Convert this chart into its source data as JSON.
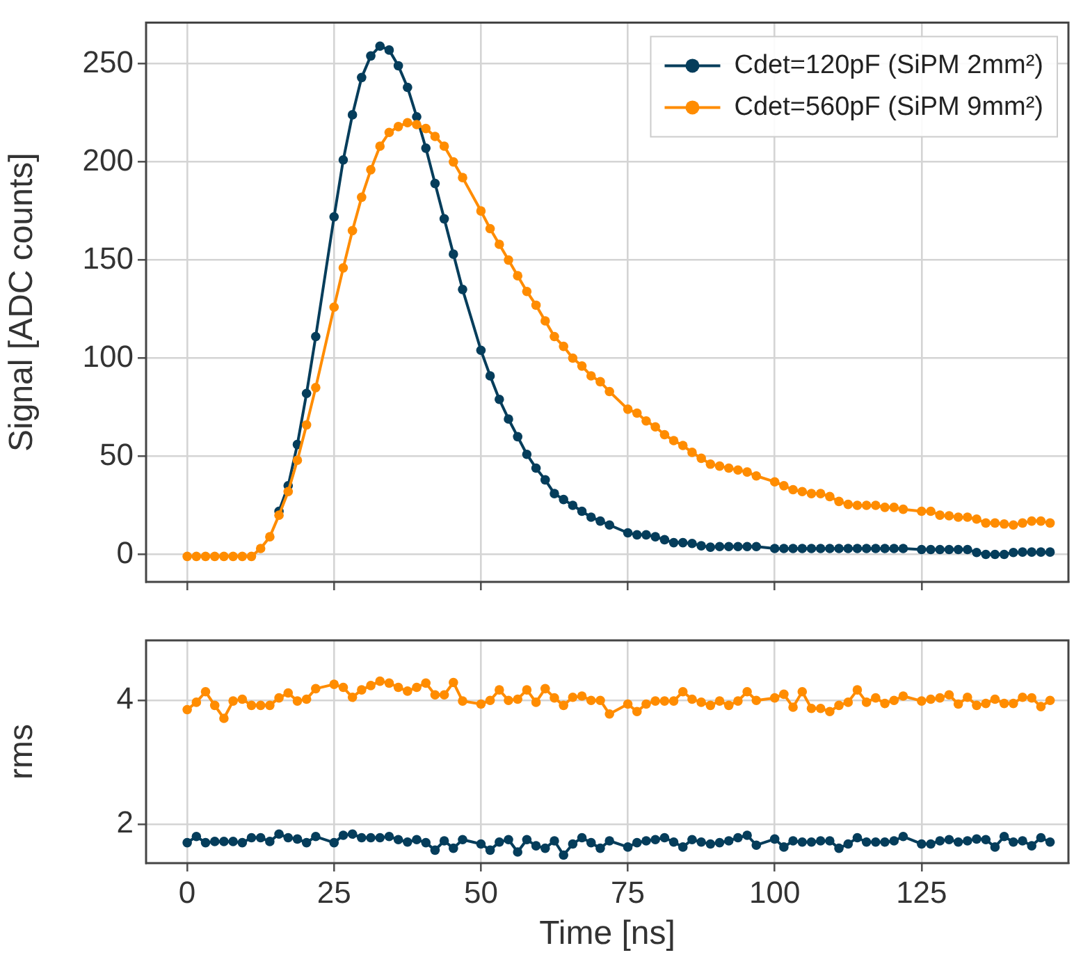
{
  "chart_data": [
    {
      "type": "line",
      "ylabel": "Signal [ADC counts]",
      "x": [
        0,
        1.5625,
        3.125,
        4.6875,
        6.25,
        7.8125,
        9.375,
        10.9375,
        12.5,
        14.0625,
        15.625,
        17.1875,
        18.75,
        20.3125,
        21.875,
        23.4375,
        25,
        26.5625,
        28.125,
        29.6875,
        31.25,
        32.8125,
        34.375,
        35.9375,
        37.5,
        39.0625,
        40.625,
        42.1875,
        43.75,
        45.3125,
        46.875,
        48.4375,
        50,
        51.5625,
        53.125,
        54.6875,
        56.25,
        57.8125,
        59.375,
        60.9375,
        62.5,
        64.0625,
        65.625,
        67.1875,
        68.75,
        70.3125,
        71.875,
        73.4375,
        75,
        76.5625,
        78.125,
        79.6875,
        81.25,
        82.8125,
        84.375,
        85.9375,
        87.5,
        89.0625,
        90.625,
        92.1875,
        93.75,
        95.3125,
        96.875,
        98.4375,
        100,
        101.5625,
        103.125,
        104.6875,
        106.25,
        107.8125,
        109.375,
        110.9375,
        112.5,
        114.0625,
        115.625,
        117.1875,
        118.75,
        120.3125,
        121.875,
        123.4375,
        125,
        126.5625,
        128.125,
        129.6875,
        131.25,
        132.8125,
        134.375,
        135.9375,
        137.5,
        139.0625,
        140.625,
        142.1875,
        143.75,
        145.3125,
        146.875
      ],
      "series": [
        {
          "name": "Cdet=120pF (SiPM 2mm²)",
          "color": "#053d5b",
          "values": [
            null,
            null,
            null,
            null,
            null,
            null,
            null,
            null,
            null,
            null,
            22,
            35,
            56,
            82,
            111,
            null,
            172,
            201,
            224,
            243,
            254,
            259,
            257,
            249,
            238,
            223,
            207,
            189,
            171,
            153,
            135,
            null,
            104,
            91,
            79,
            69,
            60,
            51,
            44,
            38,
            31,
            28,
            25,
            22,
            19,
            17,
            15,
            null,
            11,
            10,
            10,
            9,
            7.5,
            6,
            6,
            5.6,
            4.4,
            3.7,
            4,
            4,
            4,
            4,
            4,
            null,
            3,
            3,
            3,
            3,
            3,
            3,
            3,
            3,
            3,
            3,
            3,
            3,
            3,
            3,
            3,
            null,
            2.5,
            2.5,
            2.5,
            2.5,
            2.5,
            2.5,
            1,
            0,
            0,
            0,
            1,
            1.2,
            1.2,
            1.2,
            1.2
          ]
        },
        {
          "name": "Cdet=560pF (SiPM 9mm²)",
          "color": "#ff8c00",
          "values": [
            -1,
            -1,
            -1,
            -1,
            -1,
            -1,
            -1,
            -1,
            3,
            9,
            20,
            32,
            48,
            66,
            85,
            null,
            126,
            146,
            165,
            182,
            196,
            208,
            215,
            218,
            220,
            219,
            217,
            213,
            208,
            200,
            192,
            null,
            175,
            166,
            158,
            150,
            142,
            134,
            127,
            119,
            111,
            106,
            100,
            96,
            91,
            88,
            83,
            null,
            74,
            72,
            68,
            65,
            61,
            58,
            55.5,
            52,
            49,
            46,
            45,
            44,
            43,
            42,
            40,
            null,
            37,
            35,
            33,
            32,
            31,
            31,
            29.5,
            27,
            25.5,
            25,
            25,
            25,
            24,
            24,
            23,
            null,
            22,
            22,
            20,
            19.7,
            19,
            19,
            18,
            16,
            16,
            15.5,
            15,
            16,
            17,
            17,
            16
          ]
        }
      ],
      "xlim": [
        -7,
        150
      ],
      "xticks": [
        0,
        25,
        50,
        75,
        100,
        125
      ],
      "ylim": [
        -14,
        271
      ],
      "yticks": [
        0,
        50,
        100,
        150,
        200,
        250
      ],
      "tick_labels": "y",
      "grid": true,
      "legend": "top right",
      "marker": "circle",
      "line_style": "solid"
    },
    {
      "type": "line",
      "xlabel": "Time [ns]",
      "ylabel": "rms",
      "x": [
        0,
        1.5625,
        3.125,
        4.6875,
        6.25,
        7.8125,
        9.375,
        10.9375,
        12.5,
        14.0625,
        15.625,
        17.1875,
        18.75,
        20.3125,
        21.875,
        23.4375,
        25,
        26.5625,
        28.125,
        29.6875,
        31.25,
        32.8125,
        34.375,
        35.9375,
        37.5,
        39.0625,
        40.625,
        42.1875,
        43.75,
        45.3125,
        46.875,
        48.4375,
        50,
        51.5625,
        53.125,
        54.6875,
        56.25,
        57.8125,
        59.375,
        60.9375,
        62.5,
        64.0625,
        65.625,
        67.1875,
        68.75,
        70.3125,
        71.875,
        73.4375,
        75,
        76.5625,
        78.125,
        79.6875,
        81.25,
        82.8125,
        84.375,
        85.9375,
        87.5,
        89.0625,
        90.625,
        92.1875,
        93.75,
        95.3125,
        96.875,
        98.4375,
        100,
        101.5625,
        103.125,
        104.6875,
        106.25,
        107.8125,
        109.375,
        110.9375,
        112.5,
        114.0625,
        115.625,
        117.1875,
        118.75,
        120.3125,
        121.875,
        123.4375,
        125,
        126.5625,
        128.125,
        129.6875,
        131.25,
        132.8125,
        134.375,
        135.9375,
        137.5,
        139.0625,
        140.625,
        142.1875,
        143.75,
        145.3125,
        146.875
      ],
      "series": [
        {
          "color": "#053d5b",
          "values": [
            1.7,
            1.8,
            1.7,
            1.72,
            1.72,
            1.72,
            1.7,
            1.78,
            1.78,
            1.72,
            1.84,
            1.78,
            1.76,
            1.7,
            1.8,
            null,
            1.7,
            1.82,
            1.84,
            1.78,
            1.78,
            1.78,
            1.8,
            1.75,
            1.71,
            1.75,
            1.7,
            1.58,
            1.73,
            1.61,
            1.75,
            null,
            1.68,
            1.58,
            1.71,
            1.75,
            1.55,
            1.75,
            1.65,
            1.61,
            1.73,
            1.5,
            1.68,
            1.78,
            1.7,
            1.61,
            1.73,
            null,
            1.63,
            1.7,
            1.73,
            1.75,
            1.78,
            1.71,
            1.63,
            1.75,
            1.71,
            1.68,
            1.7,
            1.73,
            1.78,
            1.82,
            1.66,
            null,
            1.76,
            1.63,
            1.73,
            1.71,
            1.71,
            1.73,
            1.73,
            1.61,
            1.68,
            1.78,
            1.71,
            1.71,
            1.71,
            1.73,
            1.8,
            null,
            1.68,
            1.68,
            1.73,
            1.75,
            1.71,
            1.73,
            1.76,
            1.75,
            1.63,
            1.8,
            1.71,
            1.73,
            1.65,
            1.78,
            1.71
          ]
        },
        {
          "color": "#ff8c00",
          "values": [
            3.85,
            3.97,
            4.14,
            3.92,
            3.71,
            3.99,
            4.02,
            3.92,
            3.92,
            3.92,
            4.04,
            4.12,
            3.99,
            4.02,
            4.19,
            null,
            4.26,
            4.21,
            4.05,
            4.17,
            4.24,
            4.31,
            4.28,
            4.21,
            4.15,
            4.21,
            4.28,
            4.09,
            4.09,
            4.29,
            3.99,
            null,
            3.94,
            4.0,
            4.17,
            4.0,
            4.02,
            4.17,
            3.97,
            4.19,
            4.04,
            3.92,
            4.05,
            4.07,
            4.0,
            4.0,
            3.78,
            null,
            3.94,
            3.82,
            3.94,
            3.99,
            3.99,
            3.99,
            4.14,
            4.02,
            3.97,
            3.92,
            3.99,
            3.92,
            3.99,
            4.14,
            4.0,
            null,
            4.04,
            4.1,
            3.89,
            4.14,
            3.87,
            3.87,
            3.82,
            3.92,
            3.97,
            4.17,
            3.97,
            4.04,
            3.95,
            4.0,
            4.07,
            null,
            3.99,
            4.02,
            4.04,
            4.09,
            3.94,
            4.05,
            3.92,
            3.95,
            4.02,
            3.95,
            3.95,
            4.05,
            4.04,
            3.9,
            4.0
          ]
        }
      ],
      "xlim": [
        -7,
        150
      ],
      "xticks": [
        0,
        25,
        50,
        75,
        100,
        125
      ],
      "ylim": [
        1.37,
        4.97
      ],
      "yticks": [
        2,
        4
      ],
      "grid": true,
      "marker": "circle",
      "line_style": "solid"
    }
  ]
}
